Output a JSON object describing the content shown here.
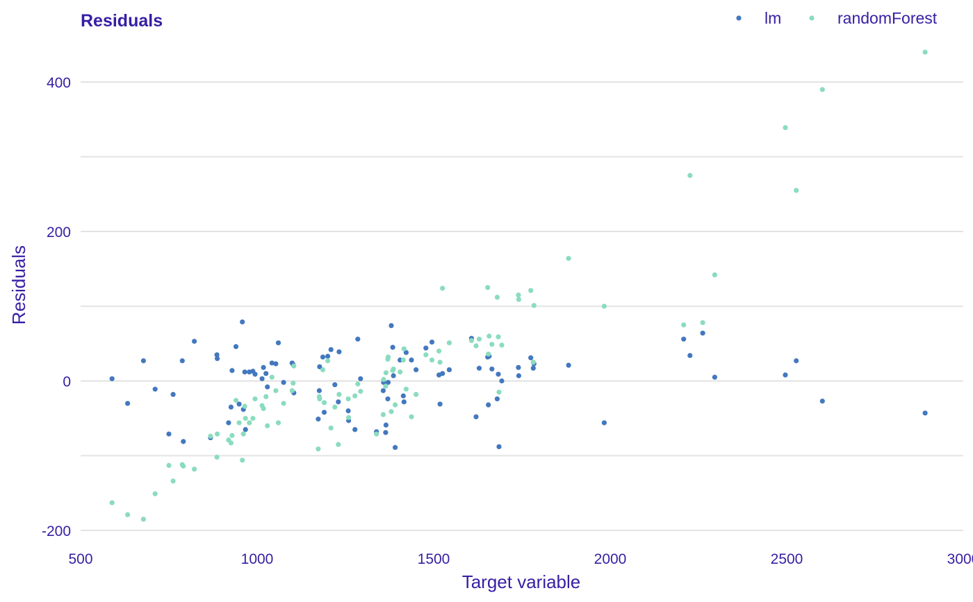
{
  "chart_data": {
    "type": "scatter",
    "title": "Residuals",
    "xlabel": "Target variable",
    "ylabel": "Residuals",
    "xlim": [
      500,
      3000
    ],
    "ylim": [
      -200,
      400
    ],
    "x_ticks": [
      500,
      1000,
      1500,
      2000,
      2500,
      3000
    ],
    "y_ticks": [
      -200,
      0,
      200,
      400
    ],
    "y_minor": [
      -100,
      100,
      300
    ],
    "grid": true,
    "legend_position": "top-right",
    "series": [
      {
        "name": "lm",
        "color": "#4378bf",
        "points": [
          [
            589,
            3
          ],
          [
            633,
            -30
          ],
          [
            678,
            27
          ],
          [
            711,
            -11
          ],
          [
            750,
            -71
          ],
          [
            762,
            -18
          ],
          [
            788,
            27
          ],
          [
            791,
            -81
          ],
          [
            822,
            53
          ],
          [
            868,
            -76
          ],
          [
            886,
            35
          ],
          [
            887,
            30
          ],
          [
            919,
            -56
          ],
          [
            926,
            -35
          ],
          [
            929,
            14
          ],
          [
            940,
            46
          ],
          [
            949,
            -31
          ],
          [
            958,
            79
          ],
          [
            961,
            -38
          ],
          [
            965,
            12
          ],
          [
            967,
            -65
          ],
          [
            978,
            12
          ],
          [
            988,
            13
          ],
          [
            994,
            9
          ],
          [
            1014,
            3
          ],
          [
            1018,
            18
          ],
          [
            1025,
            10
          ],
          [
            1029,
            -8
          ],
          [
            1042,
            24
          ],
          [
            1053,
            23
          ],
          [
            1060,
            51
          ],
          [
            1075,
            -2
          ],
          [
            1099,
            24
          ],
          [
            1102,
            22
          ],
          [
            1104,
            -16
          ],
          [
            1173,
            -51
          ],
          [
            1176,
            -13
          ],
          [
            1177,
            19
          ],
          [
            1186,
            32
          ],
          [
            1190,
            -42
          ],
          [
            1200,
            33
          ],
          [
            1209,
            42
          ],
          [
            1220,
            -5
          ],
          [
            1230,
            -28
          ],
          [
            1232,
            39
          ],
          [
            1258,
            -40
          ],
          [
            1259,
            -53
          ],
          [
            1277,
            -65
          ],
          [
            1285,
            56
          ],
          [
            1293,
            3
          ],
          [
            1338,
            -68
          ],
          [
            1357,
            -13
          ],
          [
            1358,
            -2
          ],
          [
            1364,
            -69
          ],
          [
            1365,
            -59
          ],
          [
            1370,
            -24
          ],
          [
            1371,
            -2
          ],
          [
            1380,
            74
          ],
          [
            1384,
            45
          ],
          [
            1386,
            7
          ],
          [
            1391,
            -89
          ],
          [
            1405,
            28
          ],
          [
            1414,
            -20
          ],
          [
            1416,
            -28
          ],
          [
            1422,
            38
          ],
          [
            1437,
            28
          ],
          [
            1450,
            15
          ],
          [
            1478,
            44
          ],
          [
            1495,
            52
          ],
          [
            1515,
            8
          ],
          [
            1518,
            -31
          ],
          [
            1525,
            10
          ],
          [
            1544,
            15
          ],
          [
            1607,
            57
          ],
          [
            1620,
            -48
          ],
          [
            1629,
            17
          ],
          [
            1653,
            32
          ],
          [
            1655,
            -32
          ],
          [
            1657,
            33
          ],
          [
            1665,
            16
          ],
          [
            1680,
            -24
          ],
          [
            1683,
            9
          ],
          [
            1685,
            -88
          ],
          [
            1693,
            0
          ],
          [
            1740,
            18
          ],
          [
            1741,
            7
          ],
          [
            1775,
            31
          ],
          [
            1782,
            17
          ],
          [
            1784,
            23
          ],
          [
            1882,
            21
          ],
          [
            1983,
            -56
          ],
          [
            2208,
            56
          ],
          [
            2226,
            34
          ],
          [
            2262,
            64
          ],
          [
            2296,
            5
          ],
          [
            2496,
            8
          ],
          [
            2527,
            27
          ],
          [
            2601,
            -27
          ],
          [
            2892,
            -43
          ]
        ]
      },
      {
        "name": "randomForest",
        "color": "#8bdcbe",
        "points": [
          [
            589,
            -163
          ],
          [
            633,
            -179
          ],
          [
            678,
            -185
          ],
          [
            711,
            -151
          ],
          [
            750,
            -113
          ],
          [
            762,
            -134
          ],
          [
            788,
            -112
          ],
          [
            791,
            -114
          ],
          [
            822,
            -118
          ],
          [
            868,
            -74
          ],
          [
            886,
            -102
          ],
          [
            887,
            -71
          ],
          [
            919,
            -79
          ],
          [
            926,
            -83
          ],
          [
            929,
            -73
          ],
          [
            940,
            -26
          ],
          [
            949,
            -56
          ],
          [
            958,
            -106
          ],
          [
            961,
            -71
          ],
          [
            965,
            -34
          ],
          [
            967,
            -50
          ],
          [
            978,
            -56
          ],
          [
            988,
            -50
          ],
          [
            994,
            -24
          ],
          [
            1014,
            -33
          ],
          [
            1018,
            -37
          ],
          [
            1025,
            -21
          ],
          [
            1029,
            -60
          ],
          [
            1042,
            5
          ],
          [
            1053,
            -13
          ],
          [
            1060,
            -56
          ],
          [
            1075,
            -30
          ],
          [
            1099,
            -13
          ],
          [
            1102,
            -3
          ],
          [
            1104,
            20
          ],
          [
            1173,
            -91
          ],
          [
            1176,
            -21
          ],
          [
            1177,
            -24
          ],
          [
            1186,
            15
          ],
          [
            1190,
            -29
          ],
          [
            1200,
            27
          ],
          [
            1209,
            -63
          ],
          [
            1220,
            -35
          ],
          [
            1230,
            -85
          ],
          [
            1232,
            -18
          ],
          [
            1258,
            -24
          ],
          [
            1259,
            -49
          ],
          [
            1277,
            -20
          ],
          [
            1285,
            -4
          ],
          [
            1293,
            -14
          ],
          [
            1338,
            -71
          ],
          [
            1357,
            -45
          ],
          [
            1358,
            2
          ],
          [
            1364,
            -7
          ],
          [
            1365,
            11
          ],
          [
            1370,
            29
          ],
          [
            1371,
            32
          ],
          [
            1380,
            -41
          ],
          [
            1384,
            14
          ],
          [
            1386,
            16
          ],
          [
            1391,
            -32
          ],
          [
            1405,
            12
          ],
          [
            1414,
            28
          ],
          [
            1416,
            43
          ],
          [
            1422,
            -11
          ],
          [
            1437,
            -48
          ],
          [
            1450,
            -18
          ],
          [
            1478,
            35
          ],
          [
            1495,
            28
          ],
          [
            1515,
            40
          ],
          [
            1518,
            25
          ],
          [
            1525,
            124
          ],
          [
            1544,
            51
          ],
          [
            1607,
            54
          ],
          [
            1620,
            47
          ],
          [
            1629,
            56
          ],
          [
            1653,
            125
          ],
          [
            1655,
            36
          ],
          [
            1657,
            60
          ],
          [
            1665,
            49
          ],
          [
            1680,
            112
          ],
          [
            1683,
            59
          ],
          [
            1685,
            -15
          ],
          [
            1693,
            48
          ],
          [
            1740,
            115
          ],
          [
            1741,
            109
          ],
          [
            1775,
            121
          ],
          [
            1782,
            25
          ],
          [
            1784,
            101
          ],
          [
            1882,
            164
          ],
          [
            1983,
            100
          ],
          [
            2208,
            75
          ],
          [
            2226,
            275
          ],
          [
            2262,
            78
          ],
          [
            2296,
            142
          ],
          [
            2496,
            339
          ],
          [
            2527,
            255
          ],
          [
            2601,
            390
          ],
          [
            2892,
            440
          ]
        ]
      }
    ]
  }
}
